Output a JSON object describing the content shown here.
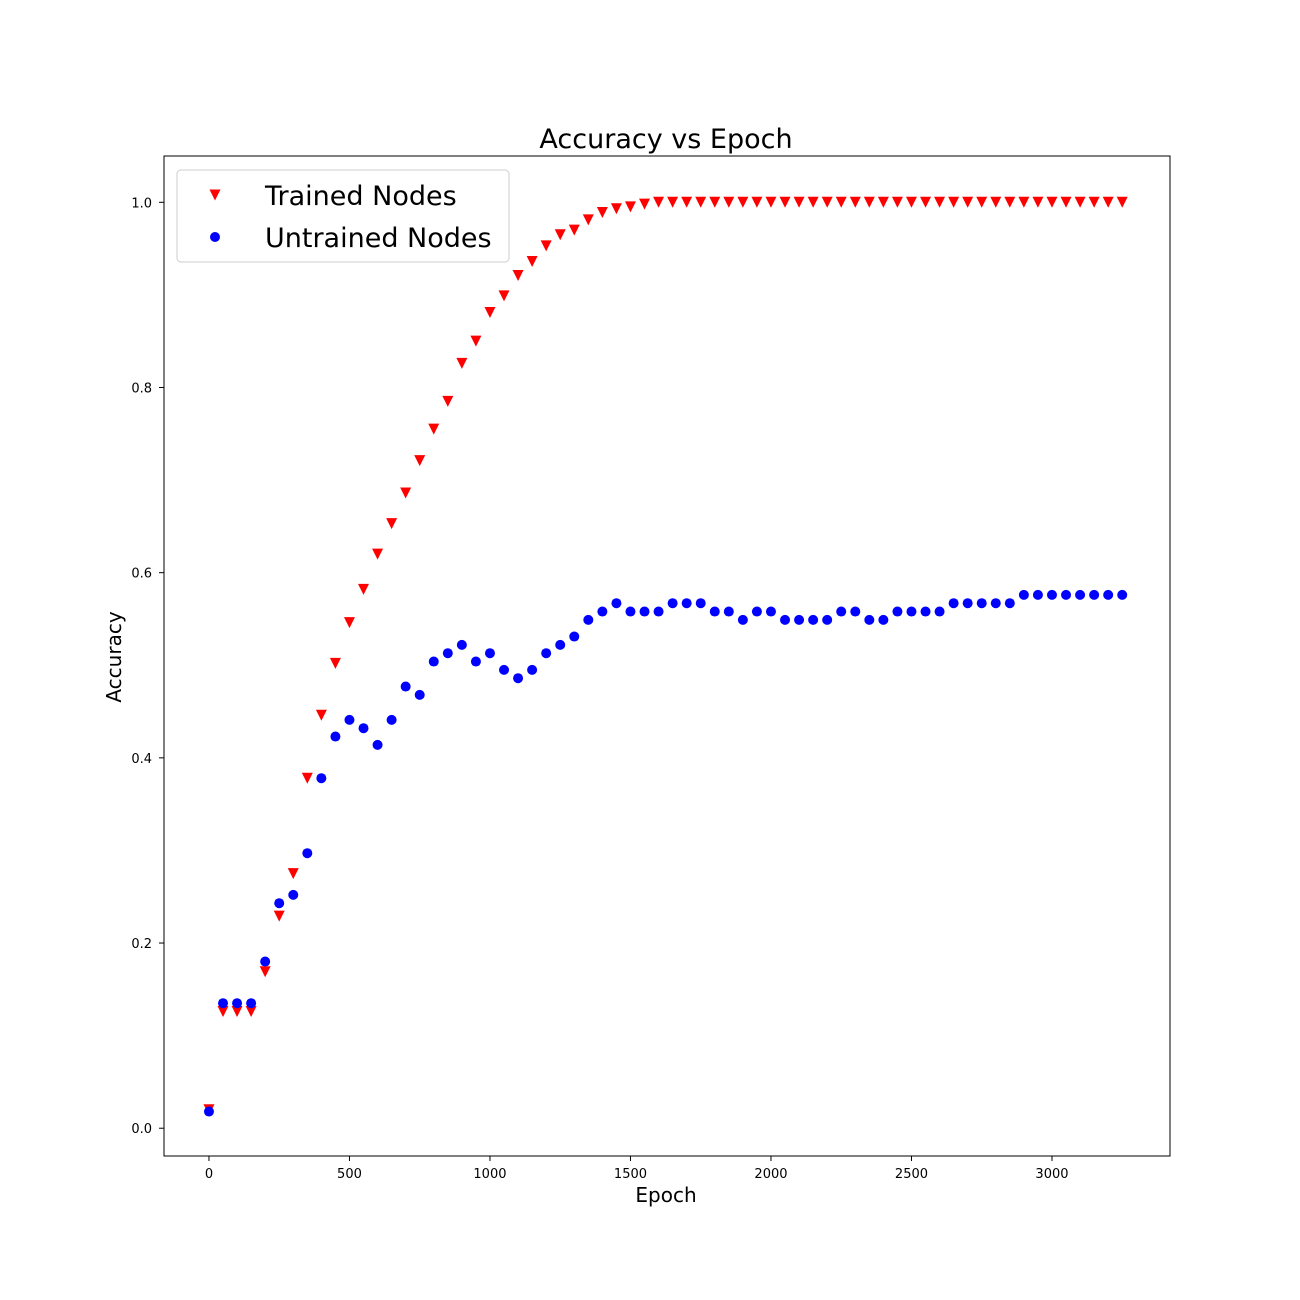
{
  "chart_data": {
    "type": "scatter",
    "title": "Accuracy vs Epoch",
    "xlabel": "Epoch",
    "ylabel": "Accuracy",
    "xlim": [
      -160,
      3420
    ],
    "ylim": [
      -0.03,
      1.05
    ],
    "xticks": [
      0,
      500,
      1000,
      1500,
      2000,
      2500,
      3000
    ],
    "yticks": [
      0.0,
      0.2,
      0.4,
      0.6,
      0.8,
      1.0
    ],
    "legend_position": "top-left",
    "x": [
      0,
      50,
      100,
      150,
      200,
      250,
      300,
      350,
      400,
      450,
      500,
      550,
      600,
      650,
      700,
      750,
      800,
      850,
      900,
      950,
      1000,
      1050,
      1100,
      1150,
      1200,
      1250,
      1300,
      1350,
      1400,
      1450,
      1500,
      1550,
      1600,
      1650,
      1700,
      1750,
      1800,
      1850,
      1900,
      1950,
      2000,
      2050,
      2100,
      2150,
      2200,
      2250,
      2300,
      2350,
      2400,
      2450,
      2500,
      2550,
      2600,
      2650,
      2700,
      2750,
      2800,
      2850,
      2900,
      2950,
      3000,
      3050,
      3100,
      3150,
      3200,
      3250
    ],
    "series": [
      {
        "name": "Trained Nodes",
        "marker": "triangle-down",
        "color": "#ff0000",
        "values": [
          0.02,
          0.126,
          0.126,
          0.126,
          0.169,
          0.229,
          0.275,
          0.378,
          0.446,
          0.502,
          0.546,
          0.582,
          0.62,
          0.653,
          0.686,
          0.721,
          0.755,
          0.785,
          0.826,
          0.85,
          0.881,
          0.899,
          0.921,
          0.936,
          0.953,
          0.965,
          0.97,
          0.981,
          0.989,
          0.993,
          0.995,
          0.998,
          1.0,
          1.0,
          1.0,
          1.0,
          1.0,
          1.0,
          1.0,
          1.0,
          1.0,
          1.0,
          1.0,
          1.0,
          1.0,
          1.0,
          1.0,
          1.0,
          1.0,
          1.0,
          1.0,
          1.0,
          1.0,
          1.0,
          1.0,
          1.0,
          1.0,
          1.0,
          1.0,
          1.0,
          1.0,
          1.0,
          1.0,
          1.0,
          1.0,
          1.0
        ]
      },
      {
        "name": "Untrained Nodes",
        "marker": "circle",
        "color": "#0000ff",
        "values": [
          0.018,
          0.135,
          0.135,
          0.135,
          0.18,
          0.243,
          0.252,
          0.297,
          0.378,
          0.423,
          0.441,
          0.432,
          0.414,
          0.441,
          0.477,
          0.468,
          0.504,
          0.513,
          0.522,
          0.504,
          0.513,
          0.495,
          0.486,
          0.495,
          0.513,
          0.522,
          0.531,
          0.549,
          0.558,
          0.567,
          0.558,
          0.558,
          0.558,
          0.567,
          0.567,
          0.567,
          0.558,
          0.558,
          0.549,
          0.558,
          0.558,
          0.549,
          0.549,
          0.549,
          0.549,
          0.558,
          0.558,
          0.549,
          0.549,
          0.558,
          0.558,
          0.558,
          0.558,
          0.567,
          0.567,
          0.567,
          0.567,
          0.567,
          0.576,
          0.576,
          0.576,
          0.576,
          0.576,
          0.576,
          0.576,
          0.576
        ]
      }
    ]
  }
}
